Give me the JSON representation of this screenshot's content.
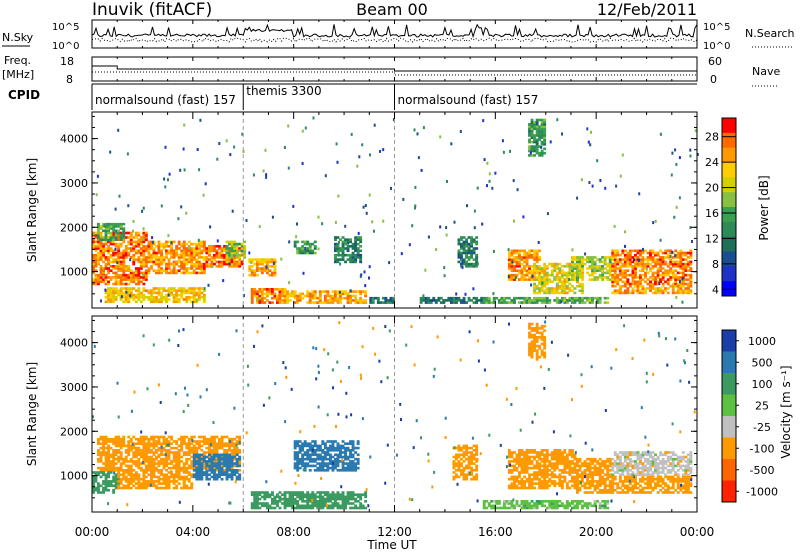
{
  "header": {
    "station": "Inuvik (fitACF)",
    "beam": "Beam 00",
    "date": "12/Feb/2011"
  },
  "noise_panel": {
    "left_label": "N.Sky",
    "left_ticks": [
      "10^5",
      "10^0"
    ],
    "right_ticks": [
      "10^5",
      "10^0"
    ],
    "right_label": "N.Search"
  },
  "freq_panel": {
    "left_label_top": "Freq.",
    "left_label_bottom": "[MHz]",
    "left_ticks": [
      "18",
      "8"
    ],
    "right_ticks": [
      "60",
      "0"
    ],
    "right_label": "Nave"
  },
  "cpid_panel": {
    "label": "CPID",
    "segments": [
      {
        "name": "normalsound (fast) 157",
        "start": "00:00",
        "end": "06:00"
      },
      {
        "name": "themis 3300",
        "start": "06:00",
        "end": "12:00"
      },
      {
        "name": "normalsound (fast) 157",
        "start": "12:00",
        "end": "24:00"
      }
    ]
  },
  "axes": {
    "xlabel": "Time UT",
    "xticks": [
      "00:00",
      "04:00",
      "08:00",
      "12:00",
      "16:00",
      "20:00",
      "00:00"
    ],
    "ylabel": "Slant Range [km]",
    "yticks": [
      "1000",
      "2000",
      "3000",
      "4000"
    ]
  },
  "power_scale": {
    "label": "Power [dB]",
    "ticks": [
      "28",
      "24",
      "20",
      "16",
      "12",
      "8",
      "4"
    ],
    "colors": [
      "#ff0000",
      "#ff6a00",
      "#ff9900",
      "#ffcc00",
      "#d4d000",
      "#88c040",
      "#3aa050",
      "#2e8b57",
      "#1e6e5a",
      "#1a4e90",
      "#1e32c8",
      "#0000ff"
    ]
  },
  "velocity_scale": {
    "label": "Velocity [m s^-1]",
    "ticks": [
      "1000",
      "500",
      "100",
      "25",
      "-25",
      "-100",
      "-500",
      "-1000"
    ],
    "colors": [
      "#1a3ea8",
      "#2a7ab0",
      "#3a9a60",
      "#5cc040",
      "#c0c0c0",
      "#ff9900",
      "#ff6600",
      "#ff2200"
    ]
  },
  "chart_data": {
    "type": "heatmap",
    "title": "Inuvik (fitACF) Beam 00 12/Feb/2011",
    "x_unit": "hours UT",
    "xlim": [
      0,
      24
    ],
    "ylim": [
      180,
      4600
    ],
    "power_blobs": [
      {
        "t0": 0.0,
        "t1": 2.2,
        "r0": 700,
        "r1": 1900,
        "value": 26
      },
      {
        "t0": 2.2,
        "t1": 4.5,
        "r0": 950,
        "r1": 1700,
        "value": 25
      },
      {
        "t0": 4.5,
        "t1": 5.9,
        "r0": 1100,
        "r1": 1600,
        "value": 26
      },
      {
        "t0": 0.2,
        "t1": 1.3,
        "r0": 1700,
        "r1": 2100,
        "value": 14
      },
      {
        "t0": 0.5,
        "t1": 4.5,
        "r0": 300,
        "r1": 650,
        "value": 22
      },
      {
        "t0": 5.3,
        "t1": 6.0,
        "r0": 1300,
        "r1": 1700,
        "value": 16
      },
      {
        "t0": 6.2,
        "t1": 7.2,
        "r0": 900,
        "r1": 1300,
        "value": 24
      },
      {
        "t0": 6.3,
        "t1": 7.6,
        "r0": 280,
        "r1": 620,
        "value": 26
      },
      {
        "t0": 7.6,
        "t1": 10.8,
        "r0": 280,
        "r1": 560,
        "value": 24
      },
      {
        "t0": 8.0,
        "t1": 8.8,
        "r0": 1400,
        "r1": 1700,
        "value": 12
      },
      {
        "t0": 9.6,
        "t1": 10.6,
        "r0": 1200,
        "r1": 1800,
        "value": 10
      },
      {
        "t0": 11.0,
        "t1": 11.9,
        "r0": 280,
        "r1": 420,
        "value": 9
      },
      {
        "t0": 13.0,
        "t1": 15.5,
        "r0": 280,
        "r1": 400,
        "value": 8
      },
      {
        "t0": 14.5,
        "t1": 15.2,
        "r0": 1100,
        "r1": 1800,
        "value": 10
      },
      {
        "t0": 16.5,
        "t1": 17.8,
        "r0": 800,
        "r1": 1500,
        "value": 25
      },
      {
        "t0": 17.5,
        "t1": 19.5,
        "r0": 500,
        "r1": 1200,
        "value": 20
      },
      {
        "t0": 15.5,
        "t1": 20.5,
        "r0": 280,
        "r1": 420,
        "value": 14
      },
      {
        "t0": 19.0,
        "t1": 20.6,
        "r0": 800,
        "r1": 1350,
        "value": 18
      },
      {
        "t0": 20.6,
        "t1": 23.8,
        "r0": 700,
        "r1": 1500,
        "value": 26
      },
      {
        "t0": 20.6,
        "t1": 23.8,
        "r0": 500,
        "r1": 700,
        "value": 24
      },
      {
        "t0": 17.3,
        "t1": 18.0,
        "r0": 3600,
        "r1": 4450,
        "value": 12
      }
    ],
    "velocity_blobs": [
      {
        "t0": 0.2,
        "t1": 5.8,
        "r0": 1100,
        "r1": 1900,
        "value": -100
      },
      {
        "t0": 0.0,
        "t1": 1.0,
        "r0": 600,
        "r1": 1100,
        "value": 100
      },
      {
        "t0": 1.0,
        "t1": 4.0,
        "r0": 700,
        "r1": 1100,
        "value": -100
      },
      {
        "t0": 4.0,
        "t1": 5.8,
        "r0": 900,
        "r1": 1500,
        "value": 500
      },
      {
        "t0": 6.3,
        "t1": 10.8,
        "r0": 250,
        "r1": 650,
        "value": 100
      },
      {
        "t0": 8.0,
        "t1": 10.5,
        "r0": 1100,
        "r1": 1800,
        "value": 500
      },
      {
        "t0": 14.3,
        "t1": 15.2,
        "r0": 900,
        "r1": 1700,
        "value": -100
      },
      {
        "t0": 16.5,
        "t1": 19.2,
        "r0": 700,
        "r1": 1600,
        "value": -100
      },
      {
        "t0": 19.2,
        "t1": 20.6,
        "r0": 600,
        "r1": 1400,
        "value": -100
      },
      {
        "t0": 20.6,
        "t1": 23.8,
        "r0": 600,
        "r1": 1000,
        "value": -100
      },
      {
        "t0": 20.6,
        "t1": 23.8,
        "r0": 1000,
        "r1": 1550,
        "value": -25
      },
      {
        "t0": 15.5,
        "t1": 20.5,
        "r0": 250,
        "r1": 450,
        "value": 25
      },
      {
        "t0": 17.3,
        "t1": 18.0,
        "r0": 3600,
        "r1": 4450,
        "value": -100
      }
    ]
  }
}
